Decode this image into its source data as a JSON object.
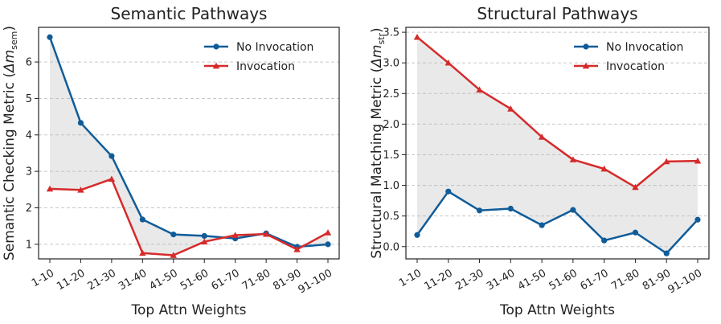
{
  "chart_data": [
    {
      "type": "line",
      "title": "Semantic Pathways",
      "xlabel": "Top Attn Weights",
      "ylabel": "Semantic Checking Metric (Δm_sem)",
      "ylabel_main": "Semantic Checking Metric (",
      "ylabel_sym": "Δm",
      "ylabel_sub": "sem",
      "ylabel_close": ")",
      "categories": [
        "1-10",
        "11-20",
        "21-30",
        "31-40",
        "41-50",
        "51-60",
        "61-70",
        "71-80",
        "81-90",
        "91-100"
      ],
      "ylim": [
        0.6,
        6.95
      ],
      "yticks": [
        1,
        2,
        3,
        4,
        5,
        6
      ],
      "grid": "y-dashed",
      "legend": "top-right",
      "fill_between": true,
      "series": [
        {
          "name": "No Invocation",
          "color": "#0f5c99",
          "marker": "circle",
          "values": [
            6.68,
            4.33,
            3.42,
            1.68,
            1.27,
            1.23,
            1.16,
            1.3,
            0.93,
            1.0
          ]
        },
        {
          "name": "Invocation",
          "color": "#d62a2a",
          "marker": "triangle",
          "values": [
            2.52,
            2.49,
            2.79,
            0.76,
            0.7,
            1.07,
            1.25,
            1.28,
            0.86,
            1.32
          ]
        }
      ]
    },
    {
      "type": "line",
      "title": "Structural Pathways",
      "xlabel": "Top Attn Weights",
      "ylabel": "Structural Matching Metric (Δm_str)",
      "ylabel_main": "Structural Matching Metric (",
      "ylabel_sym": "Δm",
      "ylabel_sub": "str",
      "ylabel_close": ")",
      "categories": [
        "1-10",
        "11-20",
        "21-30",
        "31-40",
        "41-50",
        "51-60",
        "61-70",
        "71-80",
        "81-90",
        "91-100"
      ],
      "ylim": [
        -0.2,
        3.58
      ],
      "yticks": [
        0.0,
        0.5,
        1.0,
        1.5,
        2.0,
        2.5,
        3.0,
        3.5
      ],
      "grid": "y-dashed",
      "legend": "top-right",
      "fill_between": true,
      "series": [
        {
          "name": "No Invocation",
          "color": "#0f5c99",
          "marker": "circle",
          "values": [
            0.19,
            0.9,
            0.59,
            0.62,
            0.35,
            0.6,
            0.1,
            0.23,
            -0.11,
            0.44
          ]
        },
        {
          "name": "Invocation",
          "color": "#d62a2a",
          "marker": "triangle",
          "values": [
            3.42,
            3.0,
            2.56,
            2.25,
            1.79,
            1.42,
            1.27,
            0.97,
            1.39,
            1.4
          ]
        }
      ]
    }
  ]
}
